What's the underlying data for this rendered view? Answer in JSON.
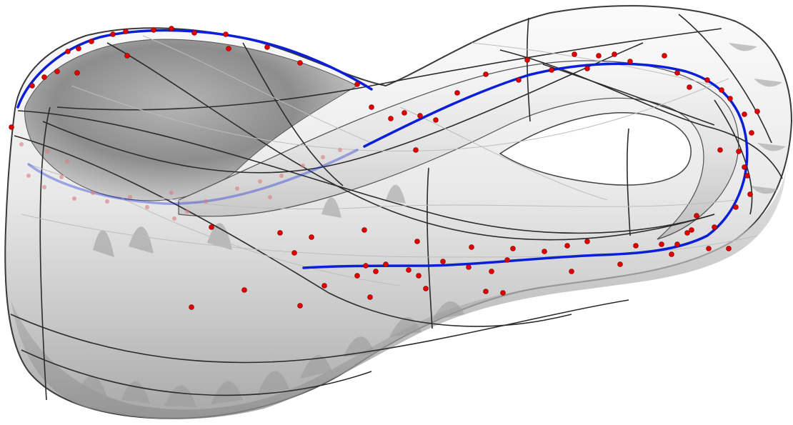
{
  "scene": {
    "subject": "klein-bottle-surface",
    "colors": {
      "background": "#ffffff",
      "surface_light": "#f2f2f2",
      "surface_mid": "#c8c8c8",
      "surface_dark": "#7a7a7a",
      "mesh_line": "#2b2b2b",
      "faint_line": "#b8b8b8",
      "path_curve": "#0a1fd6",
      "sample_point": "#e00000"
    }
  }
}
